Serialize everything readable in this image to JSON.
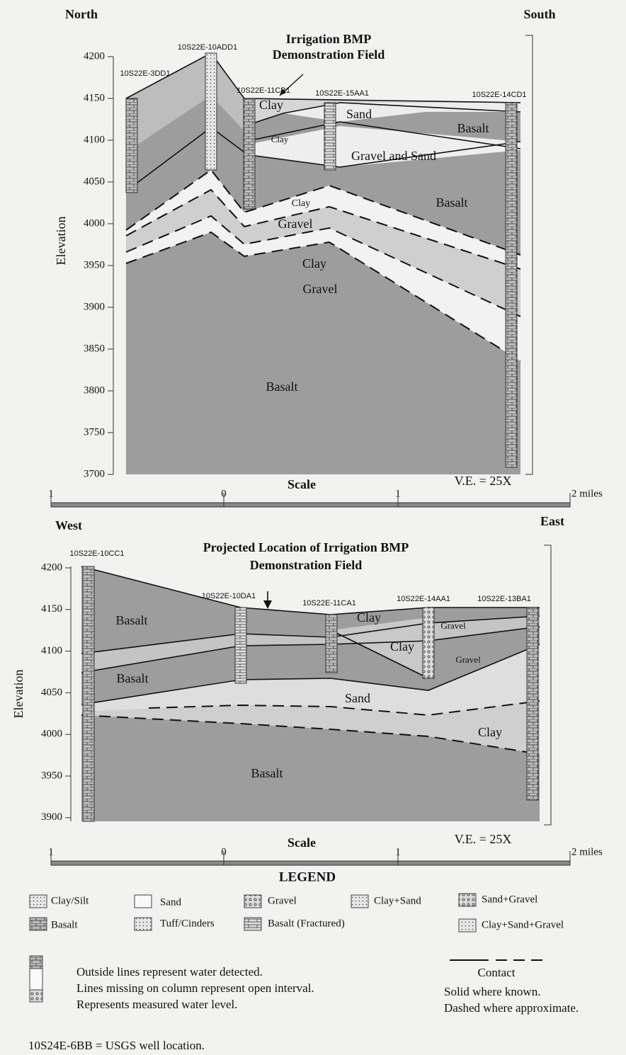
{
  "sections": [
    {
      "left_direction": "North",
      "right_direction": "South",
      "title_lines": [
        "Irrigation BMP",
        "Demonstration Field"
      ],
      "y_axis_label": "Elevation",
      "yticks": [
        4200,
        4150,
        4100,
        4050,
        4000,
        3950,
        3900,
        3850,
        3800,
        3750,
        3700
      ],
      "wells": [
        "10S22E-3DD1",
        "10S22E-10ADD1",
        "10S22E-11CB1",
        "10S22E-15AA1",
        "10S22E-14CD1"
      ],
      "layer_labels": [
        "Clay",
        "Sand",
        "Basalt",
        "Clay",
        "Gravel and Sand",
        "Basalt",
        "Clay",
        "Gravel",
        "Clay",
        "Gravel",
        "Basalt"
      ],
      "scale": {
        "title": "Scale",
        "labels": [
          "1",
          "0",
          "1",
          "2 miles"
        ]
      },
      "vertical_exaggeration": "V.E. = 25X"
    },
    {
      "left_direction": "West",
      "right_direction": "East",
      "title_lines": [
        "Projected Location of Irrigation BMP",
        "Demonstration Field"
      ],
      "y_axis_label": "Elevation",
      "yticks": [
        4200,
        4150,
        4100,
        4050,
        4000,
        3950,
        3900
      ],
      "wells": [
        "10S22E-10CC1",
        "10S22E-10DA1",
        "10S22E-11CA1",
        "10S22E-14AA1",
        "10S22E-13BA1"
      ],
      "layer_labels": [
        "Basalt",
        "Clay",
        "Gravel",
        "Clay",
        "Gravel",
        "Basalt",
        "Sand",
        "Clay",
        "Basalt"
      ],
      "scale": {
        "title": "Scale",
        "labels": [
          "1",
          "0",
          "1",
          "2 miles"
        ]
      },
      "vertical_exaggeration": "V.E. = 25X"
    }
  ],
  "legend": {
    "title": "LEGEND",
    "items": [
      "Clay/Silt",
      "Sand",
      "Gravel",
      "Clay+Sand",
      "Sand+Gravel",
      "Basalt",
      "Tuff/Cinders",
      "Basalt (Fractured)",
      "Clay+Sand+Gravel"
    ]
  },
  "notes": {
    "column": [
      "Outside lines represent water detected.",
      "Lines missing on column represent open interval.",
      "Represents measured water level."
    ],
    "contact": [
      "Contact",
      "Solid where known.",
      "Dashed where approximate."
    ],
    "well_example": "10S24E-6BB = USGS well location."
  }
}
